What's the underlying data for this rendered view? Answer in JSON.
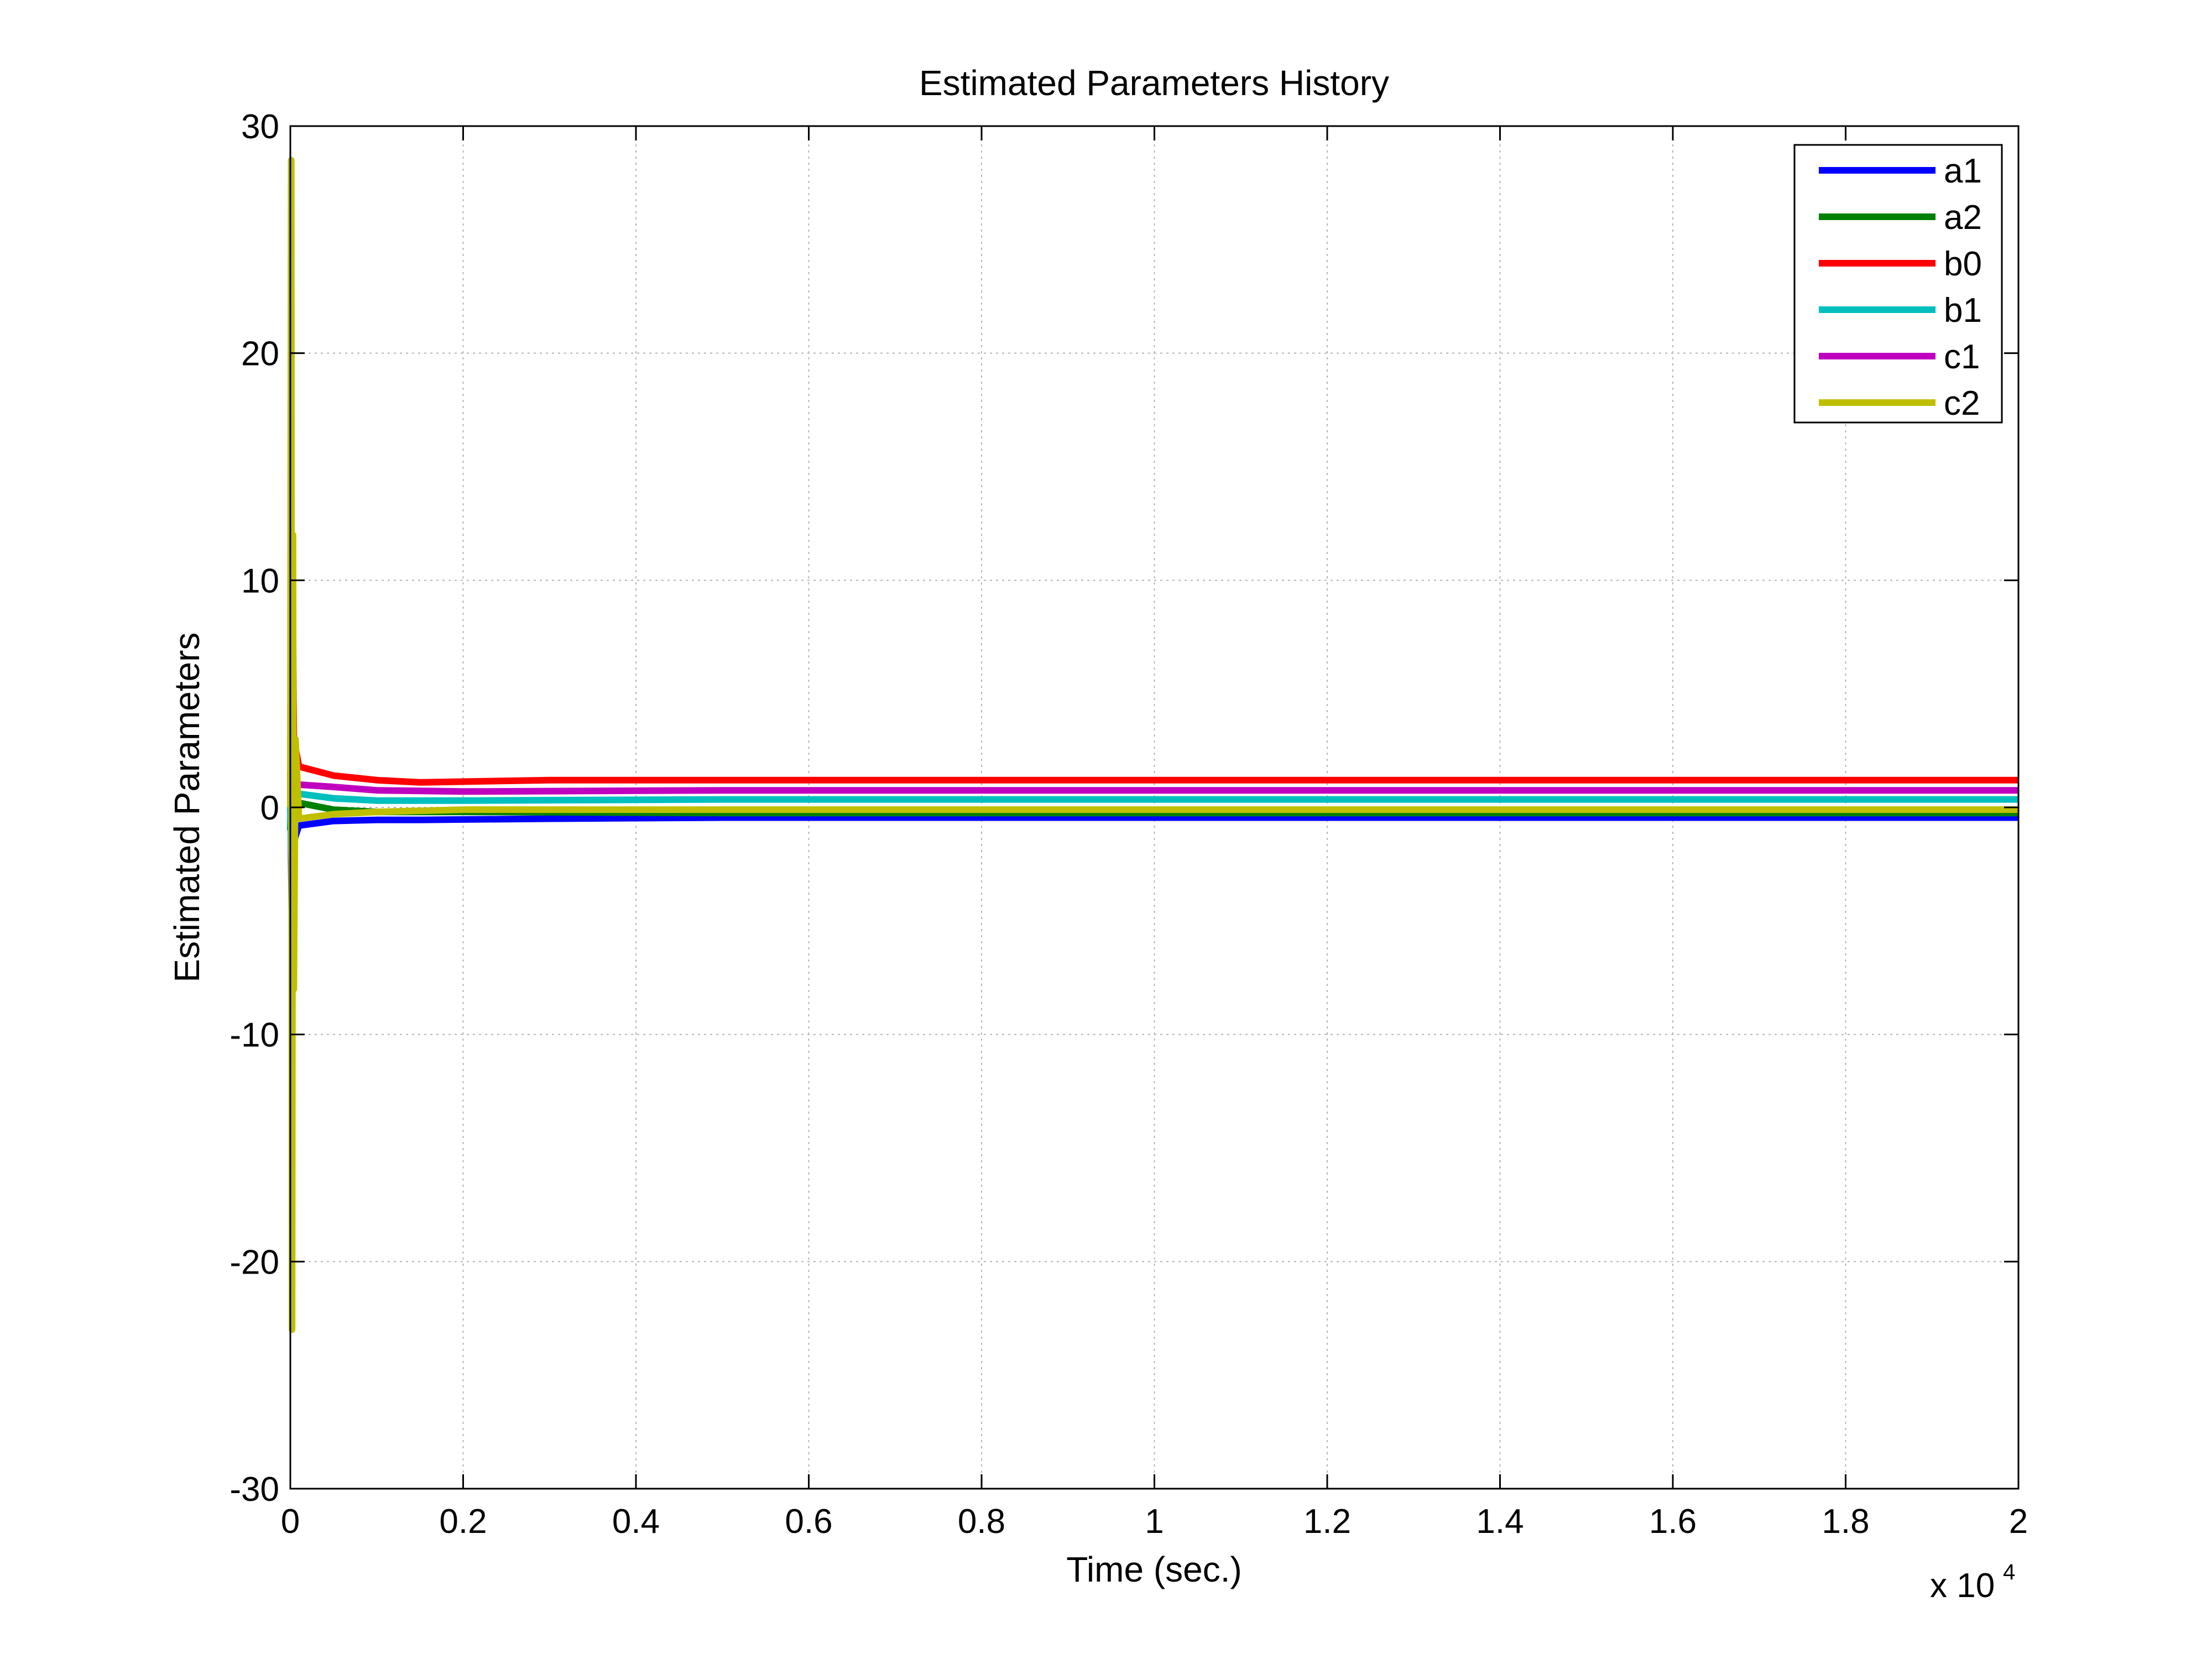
{
  "chart_data": {
    "type": "line",
    "title": "Estimated Parameters History",
    "xlabel": "Time (sec.)",
    "ylabel": "Estimated Parameters",
    "x_multiplier": "x 10",
    "x_multiplier_exp": "4",
    "xlim": [
      0,
      2
    ],
    "ylim": [
      -30,
      30
    ],
    "xticks": [
      0,
      0.2,
      0.4,
      0.6,
      0.8,
      1,
      1.2,
      1.4,
      1.6,
      1.8,
      2
    ],
    "xtick_labels": [
      "0",
      "0.2",
      "0.4",
      "0.6",
      "0.8",
      "1",
      "1.2",
      "1.4",
      "1.6",
      "1.8",
      "2"
    ],
    "yticks": [
      -30,
      -20,
      -10,
      0,
      10,
      20,
      30
    ],
    "ytick_labels": [
      "-30",
      "-20",
      "-10",
      "0",
      "10",
      "20",
      "30"
    ],
    "grid": true,
    "legend_position": "top-right",
    "series": [
      {
        "name": "a1",
        "color": "#0000ff",
        "x": [
          0,
          0.002,
          0.004,
          0.01,
          0.05,
          0.1,
          0.15,
          0.3,
          0.5,
          1,
          2
        ],
        "y": [
          1.5,
          -6,
          -1.5,
          -0.8,
          -0.6,
          -0.55,
          -0.55,
          -0.5,
          -0.45,
          -0.45,
          -0.45
        ]
      },
      {
        "name": "a2",
        "color": "#008000",
        "x": [
          0,
          0.002,
          0.004,
          0.01,
          0.05,
          0.1,
          0.2,
          0.5,
          1,
          2
        ],
        "y": [
          -1,
          4,
          0.5,
          0.2,
          -0.1,
          -0.2,
          -0.2,
          -0.25,
          -0.25,
          -0.25
        ]
      },
      {
        "name": "b0",
        "color": "#ff0000",
        "x": [
          0,
          0.002,
          0.004,
          0.01,
          0.05,
          0.1,
          0.15,
          0.3,
          0.5,
          1,
          2
        ],
        "y": [
          0,
          12,
          3,
          1.8,
          1.4,
          1.2,
          1.1,
          1.2,
          1.2,
          1.2,
          1.2
        ]
      },
      {
        "name": "b1",
        "color": "#00bfbf",
        "x": [
          0,
          0.002,
          0.004,
          0.01,
          0.05,
          0.1,
          0.2,
          0.5,
          1,
          2
        ],
        "y": [
          0,
          -3,
          1,
          0.6,
          0.4,
          0.3,
          0.3,
          0.35,
          0.35,
          0.35
        ]
      },
      {
        "name": "c1",
        "color": "#bf00bf",
        "x": [
          0,
          0.002,
          0.004,
          0.01,
          0.05,
          0.1,
          0.2,
          0.5,
          1,
          2
        ],
        "y": [
          0,
          3,
          1.2,
          1.0,
          0.9,
          0.75,
          0.7,
          0.75,
          0.75,
          0.75
        ]
      },
      {
        "name": "c2",
        "color": "#bfbf00",
        "x": [
          0,
          0.001,
          0.002,
          0.003,
          0.004,
          0.006,
          0.01,
          0.05,
          0.1,
          0.2,
          0.5,
          1,
          2
        ],
        "y": [
          0,
          28.5,
          -23,
          12,
          -8,
          3,
          -0.5,
          -0.3,
          -0.2,
          -0.1,
          -0.1,
          -0.1,
          -0.1
        ]
      }
    ]
  }
}
